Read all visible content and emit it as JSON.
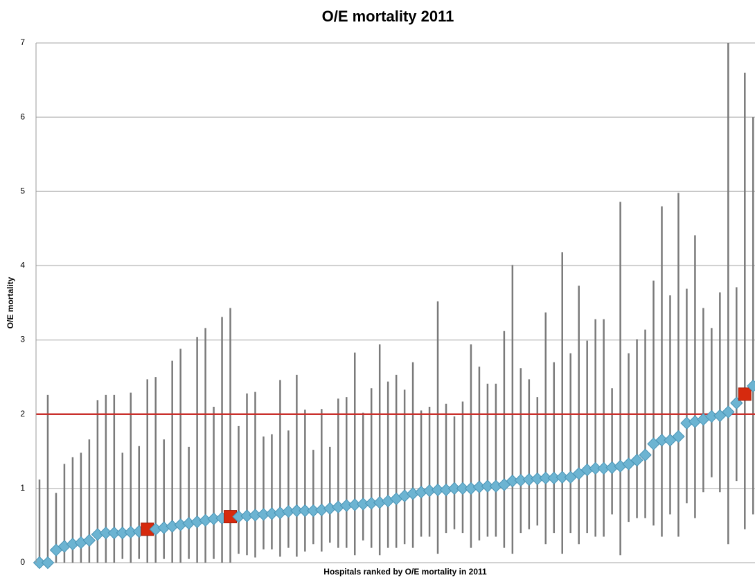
{
  "chart_data": {
    "type": "dot-range",
    "title": "O/E mortality 2011",
    "x_label": "Hospitals ranked by O/E mortality in 2011",
    "y_label": "O/E mortality",
    "ylim": [
      0,
      7
    ],
    "yticks": [
      0,
      1,
      2,
      3,
      4,
      5,
      6,
      7
    ],
    "grid": true,
    "color": "#6cb4d2",
    "highlight_color": "#d62a0e",
    "range_color": "#7a7a7a",
    "highlight": [
      13,
      23,
      85
    ],
    "reference_line": 2,
    "reference_color": "#c9302c",
    "values": [
      0,
      0,
      0.17,
      0.22,
      0.25,
      0.27,
      0.3,
      0.38,
      0.4,
      0.4,
      0.4,
      0.41,
      0.42,
      0.45,
      0.45,
      0.47,
      0.49,
      0.51,
      0.53,
      0.55,
      0.57,
      0.59,
      0.6,
      0.62,
      0.62,
      0.63,
      0.64,
      0.65,
      0.66,
      0.67,
      0.69,
      0.7,
      0.7,
      0.7,
      0.71,
      0.73,
      0.75,
      0.77,
      0.78,
      0.79,
      0.8,
      0.81,
      0.83,
      0.86,
      0.9,
      0.93,
      0.95,
      0.97,
      0.98,
      0.98,
      1.0,
      1.0,
      1.0,
      1.02,
      1.03,
      1.03,
      1.05,
      1.1,
      1.11,
      1.12,
      1.13,
      1.14,
      1.14,
      1.15,
      1.15,
      1.2,
      1.25,
      1.27,
      1.27,
      1.28,
      1.3,
      1.33,
      1.38,
      1.45,
      1.6,
      1.65,
      1.65,
      1.7,
      1.88,
      1.9,
      1.93,
      1.97,
      1.98,
      2.03,
      2.15,
      2.27,
      2.38
    ],
    "lower": [
      0,
      0,
      0,
      0,
      0,
      0,
      0,
      0,
      0,
      0,
      0.05,
      0,
      0.05,
      0,
      0,
      0.05,
      0,
      0,
      0.05,
      0,
      0,
      0.05,
      0,
      0,
      0.12,
      0.1,
      0.07,
      0.18,
      0.18,
      0.08,
      0.2,
      0.08,
      0.15,
      0.25,
      0.15,
      0.27,
      0.2,
      0.2,
      0.1,
      0.3,
      0.2,
      0.1,
      0.2,
      0.2,
      0.25,
      0.2,
      0.35,
      0.35,
      0.12,
      0.4,
      0.45,
      0.4,
      0.2,
      0.3,
      0.35,
      0.35,
      0.2,
      0.12,
      0.4,
      0.45,
      0.5,
      0.25,
      0.4,
      0.12,
      0.4,
      0.25,
      0.4,
      0.35,
      0.35,
      0.65,
      0.1,
      0.55,
      0.6,
      0.6,
      0.5,
      0.35,
      0.65,
      0.35,
      0.8,
      0.6,
      0.95,
      1.15,
      0.95,
      0.25,
      1.1,
      0.45,
      0.65
    ],
    "upper": [
      1.12,
      2.26,
      0.94,
      1.33,
      1.42,
      1.48,
      1.66,
      2.19,
      2.26,
      2.26,
      1.48,
      2.29,
      1.57,
      2.47,
      2.5,
      1.66,
      2.72,
      2.88,
      1.56,
      3.04,
      3.16,
      2.1,
      3.31,
      3.43,
      1.84,
      2.28,
      2.3,
      1.7,
      1.73,
      2.46,
      1.78,
      2.53,
      2.06,
      1.52,
      2.07,
      1.56,
      2.21,
      2.23,
      2.83,
      2.02,
      2.35,
      2.94,
      2.44,
      2.53,
      2.33,
      2.7,
      2.05,
      2.1,
      3.52,
      2.14,
      1.97,
      2.17,
      2.94,
      2.64,
      2.41,
      2.41,
      3.12,
      4.01,
      2.62,
      2.47,
      2.23,
      3.37,
      2.7,
      4.18,
      2.82,
      3.73,
      2.99,
      3.28,
      3.28,
      2.35,
      4.86,
      2.82,
      3.01,
      3.14,
      3.8,
      4.8,
      3.6,
      4.98,
      3.69,
      4.41,
      3.43,
      3.16,
      3.64,
      7.0,
      3.71,
      6.6,
      6.0
    ]
  }
}
